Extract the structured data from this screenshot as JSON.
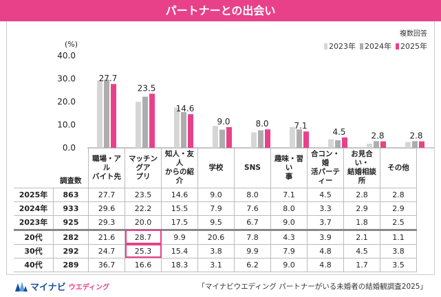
{
  "header": {
    "title": "パートナーとの出会い"
  },
  "note": "複数回答",
  "unit": "(%)",
  "colors": {
    "y2023": "#d6d6d6",
    "y2024": "#adadad",
    "y2025": "#e8418a",
    "accent": "#e8418a"
  },
  "chart_data": {
    "type": "bar",
    "title": "パートナーとの出会い",
    "ylim": [
      0,
      40
    ],
    "yticks": [
      "0.0",
      "10.0",
      "20.0",
      "30.0",
      "40.0"
    ],
    "categories": [
      "職場・アルバイト先",
      "マッチングアプリ",
      "知人・友人からの紹介",
      "学校",
      "SNS",
      "趣味・習い事",
      "合コン・婚活パーティー",
      "お見合い・結婚相談所",
      "その他"
    ],
    "series": [
      {
        "name": "2023年",
        "values": [
          29.3,
          20.0,
          17.5,
          9.5,
          6.7,
          9.0,
          3.7,
          1.8,
          2.5
        ]
      },
      {
        "name": "2024年",
        "values": [
          29.6,
          22.2,
          15.5,
          7.9,
          7.6,
          8.0,
          3.3,
          2.9,
          2.9
        ]
      },
      {
        "name": "2025年",
        "values": [
          27.7,
          23.5,
          14.6,
          9.0,
          8.0,
          7.1,
          4.5,
          2.8,
          2.8
        ]
      }
    ],
    "data_labels": [
      "27.7",
      "23.5",
      "14.6",
      "9.0",
      "8.0",
      "7.1",
      "4.5",
      "2.8",
      "2.8"
    ]
  },
  "table": {
    "count_header": "調査数",
    "cat_headers": [
      [
        "職場・アル",
        "バイト先"
      ],
      [
        "マッチングア",
        "プリ"
      ],
      [
        "知人・友人",
        "からの紹介"
      ],
      [
        "学校"
      ],
      [
        "SNS"
      ],
      [
        "趣味・習い",
        "事"
      ],
      [
        "合コン・婚",
        "活パーテ",
        "ィー"
      ],
      [
        "お見合い・",
        "結婚相談",
        "所"
      ],
      [
        "その他"
      ]
    ],
    "rows": [
      {
        "label": "2025年",
        "count": "863",
        "values": [
          "27.7",
          "23.5",
          "14.6",
          "9.0",
          "8.0",
          "7.1",
          "4.5",
          "2.8",
          "2.8"
        ]
      },
      {
        "label": "2024年",
        "count": "933",
        "values": [
          "29.6",
          "22.2",
          "15.5",
          "7.9",
          "7.6",
          "8.0",
          "3.3",
          "2.9",
          "2.9"
        ]
      },
      {
        "label": "2023年",
        "count": "925",
        "values": [
          "29.3",
          "20.0",
          "17.5",
          "9.5",
          "6.7",
          "9.0",
          "3.7",
          "1.8",
          "2.5"
        ]
      },
      {
        "label": "20代",
        "count": "282",
        "values": [
          "21.6",
          "28.7",
          "9.9",
          "20.6",
          "7.8",
          "4.3",
          "3.9",
          "2.1",
          "1.1"
        ]
      },
      {
        "label": "30代",
        "count": "292",
        "values": [
          "24.7",
          "25.3",
          "15.4",
          "3.8",
          "9.9",
          "7.9",
          "4.8",
          "4.5",
          "3.8"
        ]
      },
      {
        "label": "40代",
        "count": "289",
        "values": [
          "36.7",
          "16.6",
          "18.3",
          "3.1",
          "6.2",
          "9.0",
          "4.8",
          "1.7",
          "3.5"
        ]
      }
    ]
  },
  "footer": {
    "logo": "マイナビ",
    "logo_sub": "ウエディング",
    "source": "「マイナビウエディング パートナーがいる未婚者の結婚観調査2025」"
  }
}
